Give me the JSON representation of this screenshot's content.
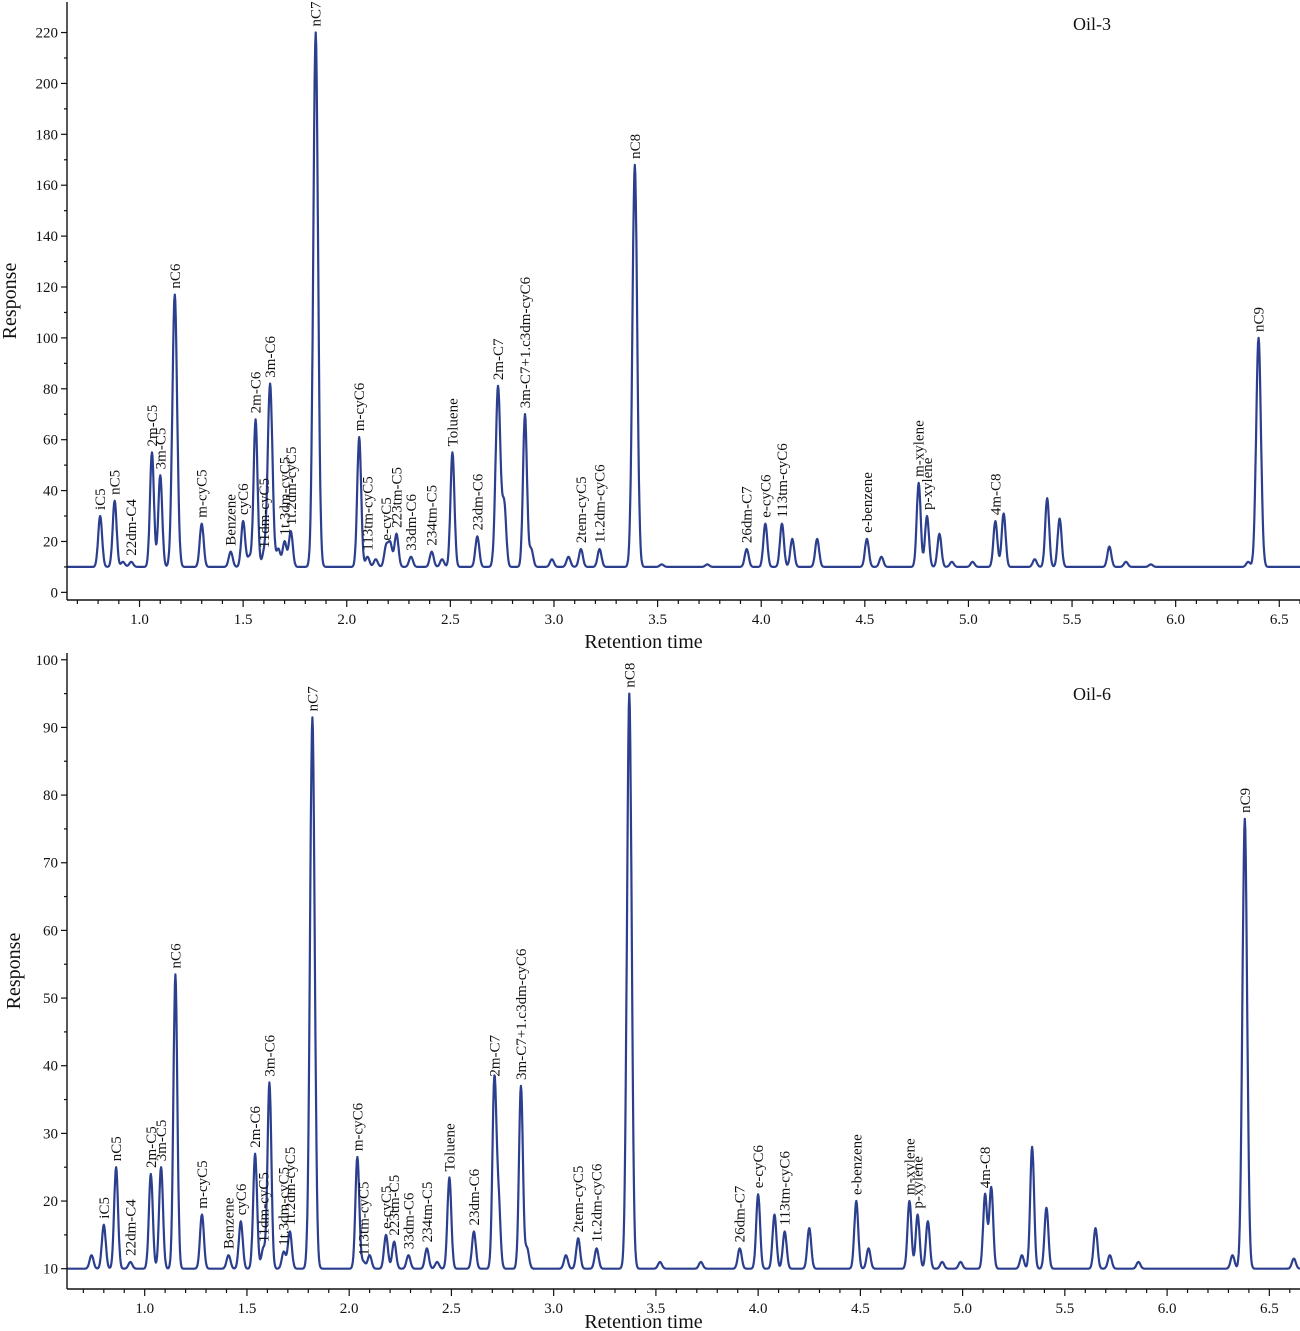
{
  "chart_data": [
    {
      "type": "line",
      "title": "Oil-3",
      "xlabel": "Retention time",
      "ylabel": "Response",
      "xlim": [
        0.65,
        6.6
      ],
      "ylim": [
        -3,
        232
      ],
      "baseline": 10,
      "xticks": [
        1.0,
        1.5,
        2.0,
        2.5,
        3.0,
        3.5,
        4.0,
        4.5,
        5.0,
        5.5,
        6.0,
        6.5
      ],
      "xtick_labels": [
        "1.0",
        "1.5",
        "2.0",
        "2.5",
        "3.0",
        "3.5",
        "4.0",
        "4.5",
        "5.0",
        "5.5",
        "6.0",
        "6.5"
      ],
      "yticks": [
        0,
        20,
        40,
        60,
        80,
        100,
        120,
        140,
        160,
        180,
        200,
        220
      ],
      "ytick_labels": [
        "0",
        "20",
        "40",
        "60",
        "80",
        "100",
        "120",
        "140",
        "160",
        "180",
        "200",
        "220"
      ],
      "peaks": [
        {
          "label": "iC5",
          "x": 0.81,
          "y": 30
        },
        {
          "label": "nC5",
          "x": 0.88,
          "y": 36
        },
        {
          "label": "22dm-C4",
          "x": 0.96,
          "y": 12
        },
        {
          "label": "2m-C5",
          "x": 1.06,
          "y": 55
        },
        {
          "label": "3m-C5",
          "x": 1.1,
          "y": 46
        },
        {
          "label": "nC6",
          "x": 1.17,
          "y": 117
        },
        {
          "label": "m-cyC5",
          "x": 1.3,
          "y": 27
        },
        {
          "label": "Benzene",
          "x": 1.44,
          "y": 16
        },
        {
          "label": "cyC6",
          "x": 1.5,
          "y": 28
        },
        {
          "label": "2m-C6",
          "x": 1.56,
          "y": 68
        },
        {
          "label": "11dm-cyC5",
          "x": 1.6,
          "y": 15
        },
        {
          "label": "3m-C6",
          "x": 1.63,
          "y": 82
        },
        {
          "label": "1t.3dm-cyC5",
          "x": 1.7,
          "y": 20
        },
        {
          "label": "1t.2dm-cyC5",
          "x": 1.73,
          "y": 24
        },
        {
          "label": "nC7",
          "x": 1.85,
          "y": 220
        },
        {
          "label": "m-cyC6",
          "x": 2.06,
          "y": 61
        },
        {
          "label": "113tm-cyC5",
          "x": 2.1,
          "y": 14
        },
        {
          "label": "e-cyC5",
          "x": 2.19,
          "y": 18
        },
        {
          "label": "223tm-C5",
          "x": 2.24,
          "y": 23
        },
        {
          "label": "33dm-C6",
          "x": 2.31,
          "y": 14
        },
        {
          "label": "234tm-C5",
          "x": 2.41,
          "y": 16
        },
        {
          "label": "Toluene",
          "x": 2.51,
          "y": 55
        },
        {
          "label": "23dm-C6",
          "x": 2.63,
          "y": 22
        },
        {
          "label": "2m-C7",
          "x": 2.73,
          "y": 81
        },
        {
          "label": "3m-C7+1.c3dm-cyC6",
          "x": 2.86,
          "y": 70
        },
        {
          "label": "2tem-cyC5",
          "x": 3.13,
          "y": 17
        },
        {
          "label": "1t.2dm-cyC6",
          "x": 3.22,
          "y": 17
        },
        {
          "label": "nC8",
          "x": 3.39,
          "y": 168
        },
        {
          "label": "26dm-C7",
          "x": 3.93,
          "y": 17
        },
        {
          "label": "e-cyC6",
          "x": 4.02,
          "y": 27
        },
        {
          "label": "113tm-cyC6",
          "x": 4.1,
          "y": 27
        },
        {
          "label": "e-benzene",
          "x": 4.51,
          "y": 21
        },
        {
          "label": "m-xylene",
          "x": 4.76,
          "y": 43
        },
        {
          "label": "p-xylene",
          "x": 4.8,
          "y": 30
        },
        {
          "label": "4m-C8",
          "x": 5.13,
          "y": 28
        },
        {
          "label": "nC9",
          "x": 6.4,
          "y": 100
        }
      ],
      "minor_peaks": [
        {
          "x": 0.92,
          "y": 12
        },
        {
          "x": 1.53,
          "y": 14
        },
        {
          "x": 1.67,
          "y": 17
        },
        {
          "x": 2.14,
          "y": 13
        },
        {
          "x": 2.21,
          "y": 19
        },
        {
          "x": 2.46,
          "y": 13
        },
        {
          "x": 2.76,
          "y": 34
        },
        {
          "x": 2.89,
          "y": 17
        },
        {
          "x": 2.99,
          "y": 13
        },
        {
          "x": 3.07,
          "y": 14
        },
        {
          "x": 3.52,
          "y": 11
        },
        {
          "x": 3.74,
          "y": 11
        },
        {
          "x": 4.15,
          "y": 21
        },
        {
          "x": 4.27,
          "y": 21
        },
        {
          "x": 4.58,
          "y": 14
        },
        {
          "x": 4.86,
          "y": 23
        },
        {
          "x": 4.92,
          "y": 12
        },
        {
          "x": 5.02,
          "y": 12
        },
        {
          "x": 5.17,
          "y": 31
        },
        {
          "x": 5.32,
          "y": 13
        },
        {
          "x": 5.38,
          "y": 37
        },
        {
          "x": 5.44,
          "y": 29
        },
        {
          "x": 5.68,
          "y": 18
        },
        {
          "x": 5.76,
          "y": 12
        },
        {
          "x": 5.88,
          "y": 11
        },
        {
          "x": 6.35,
          "y": 12
        }
      ]
    },
    {
      "type": "line",
      "title": "Oil-6",
      "xlabel": "Retention time",
      "ylabel": "Response",
      "xlim": [
        0.62,
        6.65
      ],
      "ylim": [
        7,
        101
      ],
      "baseline": 10,
      "xticks": [
        1.0,
        1.5,
        2.0,
        2.5,
        3.0,
        3.5,
        4.0,
        4.5,
        5.0,
        5.5,
        6.0,
        6.5
      ],
      "xtick_labels": [
        "1.0",
        "1.5",
        "2.0",
        "2.5",
        "3.0",
        "3.5",
        "4.0",
        "4.5",
        "5.0",
        "5.5",
        "6.0",
        "6.5"
      ],
      "yticks": [
        10,
        20,
        30,
        40,
        50,
        60,
        70,
        80,
        90,
        100
      ],
      "ytick_labels": [
        "10",
        "20",
        "30",
        "40",
        "50",
        "60",
        "70",
        "80",
        "90",
        "100"
      ],
      "peaks": [
        {
          "label": "iC5",
          "x": 0.8,
          "y": 16.5
        },
        {
          "label": "nC5",
          "x": 0.86,
          "y": 25
        },
        {
          "label": "22dm-C4",
          "x": 0.93,
          "y": 11
        },
        {
          "label": "2m-C5",
          "x": 1.03,
          "y": 24
        },
        {
          "label": "3m-C5",
          "x": 1.08,
          "y": 25
        },
        {
          "label": "nC6",
          "x": 1.15,
          "y": 53.5
        },
        {
          "label": "m-cyC5",
          "x": 1.28,
          "y": 18
        },
        {
          "label": "Benzene",
          "x": 1.41,
          "y": 12
        },
        {
          "label": "cyC6",
          "x": 1.47,
          "y": 17
        },
        {
          "label": "2m-C6",
          "x": 1.54,
          "y": 27
        },
        {
          "label": "11dm-cyC5",
          "x": 1.58,
          "y": 13
        },
        {
          "label": "3m-C6",
          "x": 1.61,
          "y": 37.5
        },
        {
          "label": "1t.3dm-cyC5",
          "x": 1.68,
          "y": 12.5
        },
        {
          "label": "1t.2dm-cyC5",
          "x": 1.71,
          "y": 15.5
        },
        {
          "label": "nC7",
          "x": 1.82,
          "y": 91.5
        },
        {
          "label": "m-cyC6",
          "x": 2.04,
          "y": 26.5
        },
        {
          "label": "113tm-cyC5",
          "x": 2.07,
          "y": 11
        },
        {
          "label": "e-cyC5",
          "x": 2.18,
          "y": 15
        },
        {
          "label": "223tm-C5",
          "x": 2.22,
          "y": 14
        },
        {
          "label": "33dm-C6",
          "x": 2.29,
          "y": 12
        },
        {
          "label": "234tm-C5",
          "x": 2.38,
          "y": 13
        },
        {
          "label": "Toluene",
          "x": 2.49,
          "y": 23.5
        },
        {
          "label": "23dm-C6",
          "x": 2.61,
          "y": 15.5
        },
        {
          "label": "2m-C7",
          "x": 2.71,
          "y": 37.5
        },
        {
          "label": "3m-C7+1.c3dm-cyC6",
          "x": 2.84,
          "y": 37
        },
        {
          "label": "2tem-cyC5",
          "x": 3.12,
          "y": 14.5
        },
        {
          "label": "1t.2dm-cyC6",
          "x": 3.21,
          "y": 13
        },
        {
          "label": "nC8",
          "x": 3.37,
          "y": 95
        },
        {
          "label": "26dm-C7",
          "x": 3.91,
          "y": 13
        },
        {
          "label": "e-cyC6",
          "x": 4.0,
          "y": 21
        },
        {
          "label": "113tm-cyC6",
          "x": 4.13,
          "y": 15.5
        },
        {
          "label": "e-benzene",
          "x": 4.48,
          "y": 20
        },
        {
          "label": "m-xylene",
          "x": 4.74,
          "y": 20
        },
        {
          "label": "p-xylene",
          "x": 4.78,
          "y": 18
        },
        {
          "label": "4m-C8",
          "x": 5.11,
          "y": 21
        },
        {
          "label": "nC9",
          "x": 6.38,
          "y": 76.5
        }
      ],
      "minor_peaks": [
        {
          "x": 0.74,
          "y": 12
        },
        {
          "x": 2.1,
          "y": 12
        },
        {
          "x": 2.43,
          "y": 11
        },
        {
          "x": 2.73,
          "y": 20
        },
        {
          "x": 2.87,
          "y": 13
        },
        {
          "x": 3.06,
          "y": 12
        },
        {
          "x": 3.52,
          "y": 11
        },
        {
          "x": 3.72,
          "y": 11
        },
        {
          "x": 4.08,
          "y": 18
        },
        {
          "x": 4.25,
          "y": 16
        },
        {
          "x": 4.54,
          "y": 13
        },
        {
          "x": 4.83,
          "y": 17
        },
        {
          "x": 4.9,
          "y": 11
        },
        {
          "x": 4.99,
          "y": 11
        },
        {
          "x": 5.14,
          "y": 22
        },
        {
          "x": 5.29,
          "y": 12
        },
        {
          "x": 5.34,
          "y": 28
        },
        {
          "x": 5.41,
          "y": 19
        },
        {
          "x": 5.65,
          "y": 16
        },
        {
          "x": 5.72,
          "y": 12
        },
        {
          "x": 5.86,
          "y": 11
        },
        {
          "x": 6.32,
          "y": 12
        },
        {
          "x": 6.62,
          "y": 11.5
        }
      ]
    }
  ],
  "colors": {
    "trace": "#2b3f8e",
    "axis": "#111111"
  }
}
